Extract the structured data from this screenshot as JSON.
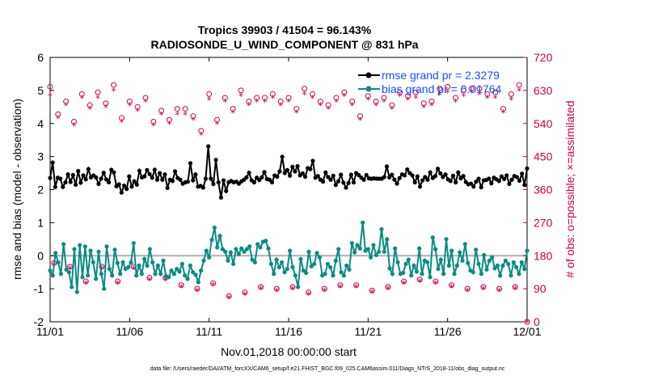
{
  "chart_data": {
    "type": "line",
    "title": "Tropics 39903 / 41504 = 96.143%",
    "subtitle": "RADIOSONDE_U_WIND_COMPONENT @ 831 hPa",
    "xlabel": "Nov.01,2018 00:00:00 start",
    "ylabel": "rmse and bias (model - observation)",
    "y2label": "# of obs: o=possible; ×=assimilated",
    "footnote": "data file: /Users/raeder/DAI/ATM_forcXX/CAM6_setup/f.e21.FHIST_BGC.f09_025.CAM6assim.011/Diags_NTrS_2018-11/obs_diag_output.nc",
    "xlim": [
      0,
      30
    ],
    "ylim": [
      -2,
      6
    ],
    "y2lim": [
      0,
      720
    ],
    "xticks": [
      0,
      5,
      10,
      15,
      20,
      25,
      30
    ],
    "xtick_labels": [
      "11/01",
      "11/06",
      "11/11",
      "11/16",
      "11/21",
      "11/26",
      "12/01"
    ],
    "yticks": [
      -2,
      -1,
      0,
      1,
      2,
      3,
      4,
      5,
      6
    ],
    "ytick_labels": [
      "-2",
      "-1",
      "0",
      "1",
      "2",
      "3",
      "4",
      "5",
      "6"
    ],
    "y2ticks": [
      0,
      90,
      180,
      270,
      360,
      450,
      540,
      630,
      720
    ],
    "y2tick_labels": [
      "0",
      "90",
      "180",
      "270",
      "360",
      "450",
      "540",
      "630",
      "720"
    ],
    "legend": [
      "rmse grand pr = 2.3279",
      "bias grand pr = 0.01764"
    ],
    "legend_position": "top-right",
    "series": [
      {
        "name": "rmse",
        "color": "#000000",
        "values": [
          2.35,
          2.82,
          2.08,
          2.36,
          2.33,
          2.08,
          2.22,
          2.46,
          2.23,
          2.44,
          2.15,
          2.56,
          2.21,
          2.43,
          2.31,
          2.62,
          2.37,
          2.43,
          2.37,
          2.17,
          2.33,
          2.51,
          2.31,
          2.22,
          2.6,
          2.52,
          2.1,
          2.16,
          1.91,
          2.12,
          2.02,
          2.4,
          2.09,
          2.25,
          2.15,
          2.57,
          2.37,
          2.4,
          2.59,
          2.47,
          2.36,
          2.6,
          2.3,
          2.5,
          2.3,
          2.46,
          2.05,
          2.3,
          2.26,
          2.55,
          2.35,
          2.3,
          2.18,
          2.22,
          2.24,
          2.8,
          2.28,
          2.46,
          2.09,
          2.11,
          2.06,
          2.33,
          3.31,
          2.33,
          2.17,
          2.9,
          2.22,
          1.76,
          2.28,
          1.96,
          2.22,
          2.26,
          2.22,
          2.24,
          2.18,
          2.25,
          2.3,
          2.37,
          2.51,
          2.28,
          2.22,
          2.36,
          2.29,
          2.37,
          2.53,
          2.32,
          2.3,
          2.22,
          2.43,
          2.39,
          2.55,
          2.99,
          2.5,
          2.59,
          2.42,
          2.69,
          2.55,
          2.71,
          2.43,
          2.49,
          2.39,
          2.65,
          2.62,
          2.87,
          2.36,
          2.41,
          2.3,
          2.24,
          2.52,
          2.38,
          2.3,
          2.42,
          2.14,
          2.25,
          2.45,
          2.21,
          2.06,
          2.2,
          2.45,
          2.22,
          2.5,
          2.44,
          2.36,
          2.3,
          2.44,
          2.34,
          2.33,
          2.34,
          2.33,
          2.33,
          2.33,
          2.38,
          2.7,
          2.37,
          2.45,
          2.3,
          2.18,
          2.35,
          2.46,
          2.43,
          2.61,
          2.5,
          2.43,
          2.22,
          2.4,
          2.09,
          2.28,
          2.38,
          2.3,
          2.52,
          2.35,
          2.41,
          2.63,
          2.49,
          2.38,
          2.46,
          2.31,
          2.26,
          2.42,
          2.22,
          2.52,
          2.34,
          2.41,
          2.23,
          2.16,
          2.18,
          2.09,
          2.24,
          2.33,
          2.07,
          2.28,
          2.29,
          2.33,
          2.19,
          2.36,
          2.31,
          2.26,
          2.4,
          2.32,
          2.43,
          2.17,
          2.3,
          2.41,
          2.38,
          2.27,
          2.48,
          2.14,
          2.64
        ]
      },
      {
        "name": "bias",
        "color": "#0b8b82",
        "values": [
          -0.45,
          -0.6,
          0.08,
          -0.2,
          -0.55,
          0.35,
          -0.42,
          -0.5,
          -0.95,
          0.2,
          -1.1,
          0.32,
          -0.65,
          0.28,
          -0.6,
          0.15,
          -0.2,
          -0.7,
          0.12,
          -0.55,
          -1.0,
          0.28,
          -0.4,
          -0.6,
          0.18,
          -0.22,
          -0.55,
          -0.2,
          -0.4,
          -0.35,
          -0.2,
          0.38,
          -0.6,
          -0.3,
          -0.55,
          -0.1,
          -0.3,
          0.2,
          -0.2,
          -0.55,
          -0.3,
          -0.55,
          -0.15,
          -0.62,
          -0.65,
          -0.45,
          -0.55,
          -0.4,
          -0.48,
          -0.25,
          -0.6,
          -0.7,
          -0.3,
          -0.5,
          -0.58,
          -0.8,
          -0.45,
          -0.15,
          0.15,
          -0.05,
          0.48,
          0.85,
          0.25,
          0.6,
          0.2,
          0.12,
          -0.15,
          0.1,
          -0.25,
          0.2,
          0.05,
          0.22,
          0.12,
          0.2,
          0.28,
          -0.12,
          -0.2,
          0.35,
          0.25,
          0.42,
          0.45,
          0.22,
          -0.25,
          -0.55,
          -0.12,
          -0.35,
          -0.2,
          -0.5,
          -0.4,
          0.15,
          -0.35,
          -0.6,
          -0.95,
          -0.1,
          -0.45,
          -0.52,
          0.12,
          -0.32,
          -0.25,
          0.08,
          -0.05,
          -0.6,
          -0.55,
          -0.25,
          -0.35,
          -0.6,
          -0.15,
          0.2,
          -0.5,
          -0.6,
          -0.3,
          -0.42,
          0.38,
          0.1,
          0.32,
          0.22,
          1.0,
          0.15,
          0.2,
          -0.05,
          0.32,
          0.02,
          0.12,
          0.8,
          0.12,
          0.5,
          -0.38,
          -0.55,
          0.22,
          -0.2,
          -0.55,
          -0.52,
          -0.25,
          -0.12,
          -0.6,
          -0.3,
          -0.48,
          0.22,
          -0.55,
          -0.15,
          -0.2,
          -0.65,
          0.55,
          0.2,
          -0.4,
          -0.12,
          -0.55,
          0.5,
          -0.3,
          0.15,
          -0.55,
          -0.3,
          0.1,
          -0.15,
          0.35,
          -0.22,
          -0.45,
          -0.5,
          0.18,
          -0.25,
          -0.55,
          0.02,
          -0.42,
          -0.15,
          -0.05,
          -0.38,
          -0.3,
          -0.6,
          -0.3,
          -0.15,
          -0.25,
          -0.6,
          -0.2,
          -0.35,
          -0.55,
          -0.2,
          -0.4,
          0.15
        ]
      },
      {
        "name": "possible (o)",
        "axis": "right",
        "color": "#c8004c",
        "marker": "o",
        "x": [
          0.0,
          0.25,
          0.5,
          1.0,
          1.25,
          1.5,
          2.0,
          2.25,
          2.5,
          3.0,
          3.25,
          3.5,
          4.0,
          4.25,
          4.5,
          5.0,
          5.25,
          5.5,
          6.0,
          6.25,
          6.5,
          7.0,
          7.25,
          7.5,
          8.0,
          8.25,
          8.5,
          9.0,
          9.25,
          9.5,
          10.0,
          10.25,
          10.5,
          11.0,
          11.25,
          11.5,
          12.0,
          12.25,
          12.5,
          13.0,
          13.25,
          13.5,
          14.0,
          14.25,
          14.5,
          15.0,
          15.25,
          15.5,
          16.0,
          16.25,
          16.5,
          17.0,
          17.25,
          17.5,
          18.0,
          18.25,
          18.5,
          19.0,
          19.25,
          19.5,
          20.0,
          20.25,
          20.5,
          21.0,
          21.25,
          21.5,
          22.0,
          22.25,
          22.5,
          23.0,
          23.25,
          23.5,
          24.0,
          24.25,
          24.5,
          25.0,
          25.25,
          25.5,
          26.0,
          26.25,
          26.5,
          27.0,
          27.25,
          27.5,
          28.0,
          28.25,
          28.5,
          29.0,
          29.25,
          29.5,
          30.0
        ],
        "values": [
          640,
          160,
          565,
          600,
          150,
          545,
          620,
          110,
          590,
          625,
          150,
          595,
          645,
          110,
          555,
          600,
          150,
          585,
          610,
          120,
          545,
          575,
          120,
          550,
          580,
          100,
          580,
          560,
          90,
          520,
          620,
          105,
          550,
          610,
          70,
          580,
          630,
          80,
          600,
          610,
          95,
          610,
          620,
          90,
          600,
          610,
          95,
          580,
          635,
          80,
          620,
          600,
          90,
          590,
          610,
          100,
          625,
          600,
          100,
          560,
          615,
          85,
          600,
          610,
          95,
          590,
          625,
          110,
          615,
          625,
          115,
          595,
          600,
          110,
          635,
          640,
          100,
          610,
          630,
          90,
          635,
          635,
          95,
          620,
          625,
          90,
          580,
          620,
          95,
          645,
          0
        ]
      },
      {
        "name": "assimilated (×)",
        "axis": "right",
        "color": "#c8004c",
        "marker": "*",
        "x": [
          0.0,
          0.25,
          0.5,
          1.0,
          1.25,
          1.5,
          2.0,
          2.25,
          2.5,
          3.0,
          3.25,
          3.5,
          4.0,
          4.25,
          4.5,
          5.0,
          5.25,
          5.5,
          6.0,
          6.25,
          6.5,
          7.0,
          7.25,
          7.5,
          8.0,
          8.25,
          8.5,
          9.0,
          9.25,
          9.5,
          10.0,
          10.25,
          10.5,
          11.0,
          11.25,
          11.5,
          12.0,
          12.25,
          12.5,
          13.0,
          13.25,
          13.5,
          14.0,
          14.25,
          14.5,
          15.0,
          15.25,
          15.5,
          16.0,
          16.25,
          16.5,
          17.0,
          17.25,
          17.5,
          18.0,
          18.25,
          18.5,
          19.0,
          19.25,
          19.5,
          20.0,
          20.25,
          20.5,
          21.0,
          21.25,
          21.5,
          22.0,
          22.25,
          22.5,
          23.0,
          23.25,
          23.5,
          24.0,
          24.25,
          24.5,
          25.0,
          25.25,
          25.5,
          26.0,
          26.25,
          26.5,
          27.0,
          27.25,
          27.5,
          28.0,
          28.25,
          28.5,
          29.0,
          29.25,
          29.5,
          30.0
        ],
        "values": [
          615,
          155,
          555,
          590,
          145,
          535,
          610,
          105,
          580,
          610,
          145,
          585,
          630,
          105,
          545,
          590,
          145,
          575,
          600,
          115,
          535,
          565,
          115,
          540,
          565,
          95,
          565,
          550,
          85,
          510,
          605,
          100,
          540,
          600,
          65,
          570,
          615,
          75,
          590,
          600,
          90,
          600,
          610,
          85,
          590,
          600,
          90,
          570,
          620,
          75,
          610,
          590,
          85,
          580,
          600,
          95,
          615,
          590,
          95,
          550,
          605,
          80,
          590,
          600,
          90,
          580,
          615,
          105,
          605,
          610,
          110,
          585,
          590,
          105,
          620,
          625,
          95,
          600,
          615,
          85,
          625,
          620,
          90,
          610,
          610,
          85,
          570,
          605,
          90,
          630,
          0
        ]
      }
    ]
  }
}
